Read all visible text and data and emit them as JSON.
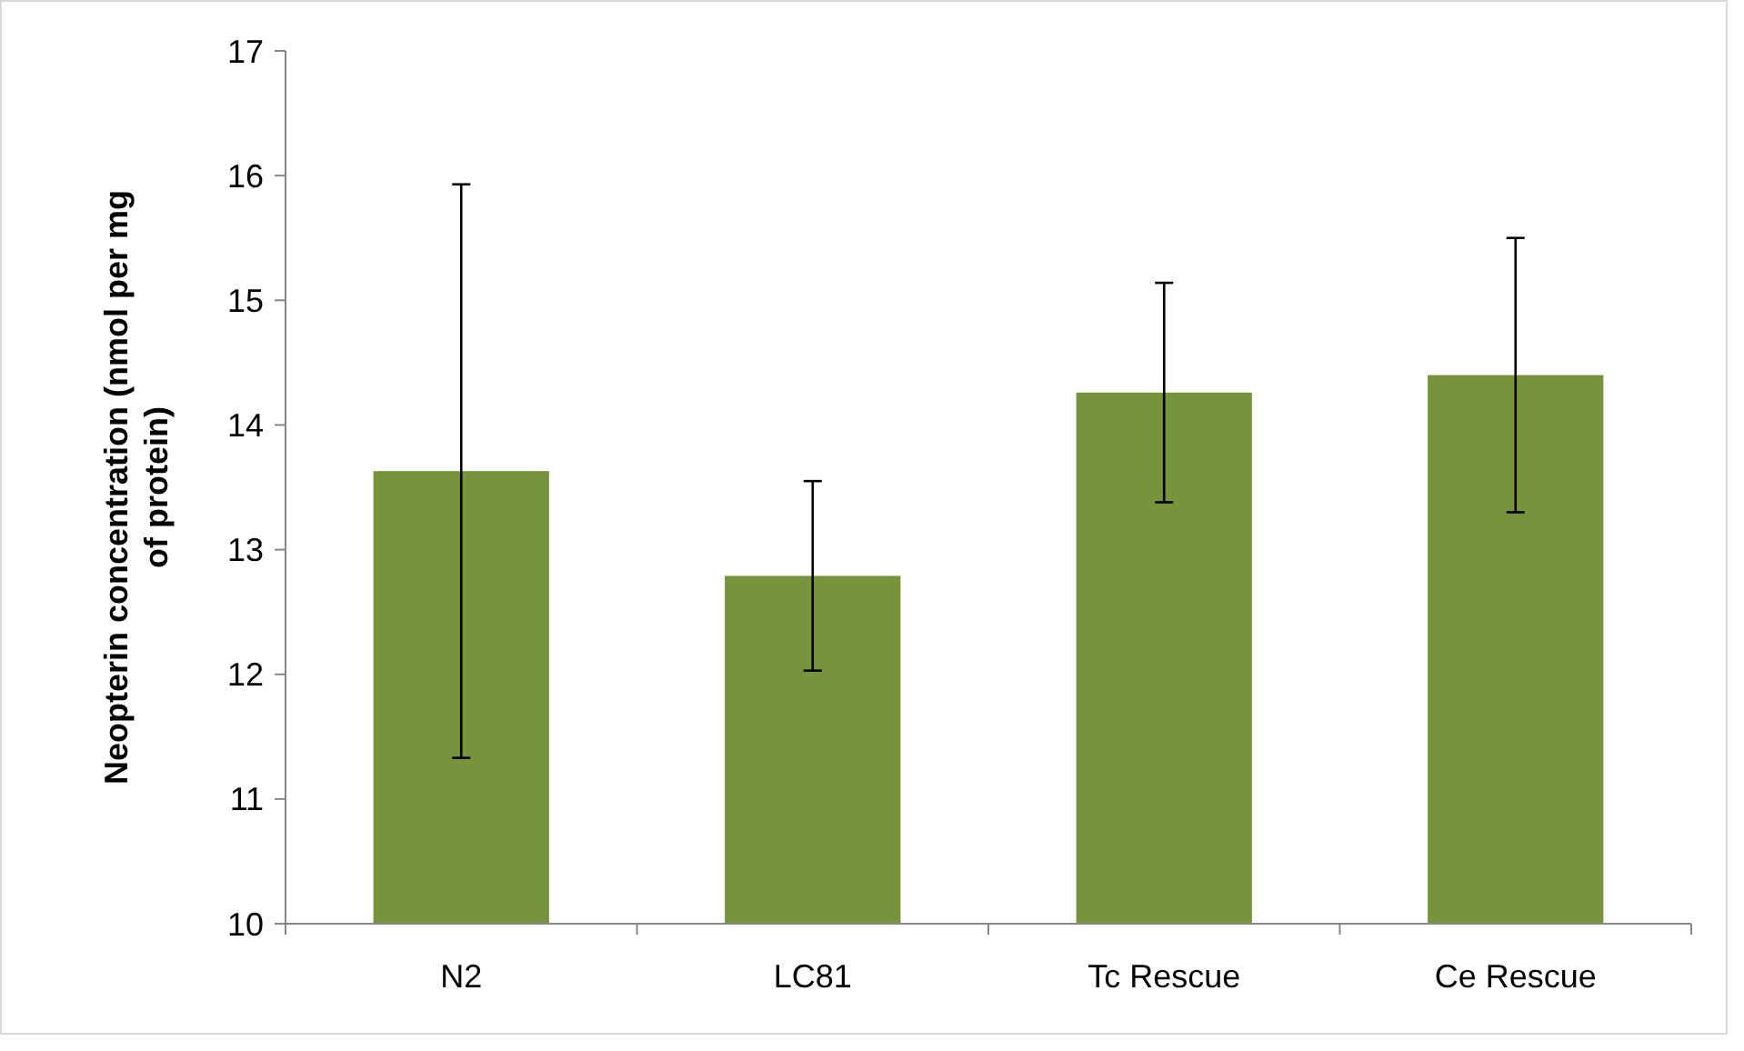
{
  "chart_data": {
    "type": "bar",
    "ylabel": "Neopterin concentration (nmol per mg of protein)",
    "categories": [
      "N2",
      "LC81",
      "Tc Rescue",
      "Ce Rescue"
    ],
    "values": [
      13.63,
      12.79,
      14.26,
      14.4
    ],
    "errors": [
      2.3,
      0.76,
      0.88,
      1.1
    ],
    "color": "#77933c",
    "ylim": [
      10,
      17
    ],
    "yticks": [
      10,
      11,
      12,
      13,
      14,
      15,
      16,
      17
    ],
    "grid": false
  }
}
